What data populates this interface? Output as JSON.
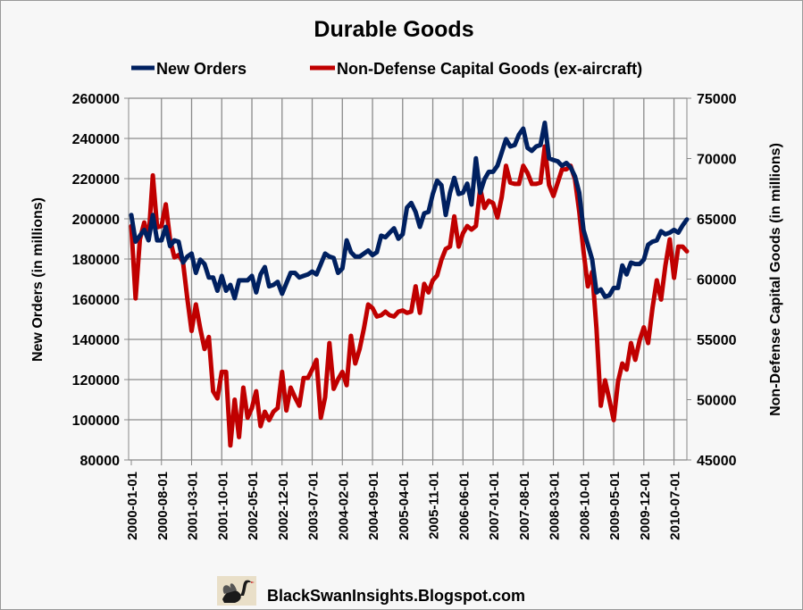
{
  "chart_data": {
    "type": "line",
    "title": "Durable Goods",
    "ylabel": "New Orders (in millions)",
    "y2label": "Non-Defense Capital Goods  (in millions)",
    "ylim": [
      80000,
      260000
    ],
    "y2lim": [
      45000,
      75000
    ],
    "yticks": [
      "260000",
      "240000",
      "220000",
      "200000",
      "180000",
      "160000",
      "140000",
      "120000",
      "100000",
      "80000"
    ],
    "y2ticks": [
      "75000",
      "70000",
      "65000",
      "60000",
      "55000",
      "50000",
      "45000"
    ],
    "x_start": "2000-01-01",
    "x_end": "2010-10-01",
    "x_frequency": "monthly",
    "xticks": [
      "2000-01-01",
      "2000-08-01",
      "2001-03-01",
      "2001-10-01",
      "2002-05-01",
      "2002-12-01",
      "2003-07-01",
      "2004-02-01",
      "2004-09-01",
      "2005-04-01",
      "2005-11-01",
      "2006-06-01",
      "2007-01-01",
      "2007-08-01",
      "2008-03-01",
      "2008-10-01",
      "2009-05-01",
      "2009-12-01",
      "2010-07-01"
    ],
    "grid": true,
    "legend_position": "top",
    "series": [
      {
        "name": "New Orders",
        "axis": "left",
        "color": "#002060",
        "values": [
          201900,
          188600,
          191600,
          194500,
          189300,
          201900,
          189300,
          189300,
          196000,
          186400,
          189300,
          188600,
          178200,
          181200,
          182700,
          173100,
          179700,
          177500,
          170800,
          170800,
          164200,
          171600,
          164200,
          167100,
          160500,
          169400,
          169400,
          169400,
          171600,
          163400,
          172300,
          176000,
          166400,
          167100,
          168600,
          162700,
          167900,
          173100,
          173100,
          170800,
          171600,
          172300,
          173800,
          172300,
          177500,
          182700,
          181200,
          180500,
          173100,
          175300,
          189300,
          183400,
          181200,
          181200,
          182700,
          184200,
          181900,
          183400,
          191600,
          190800,
          193100,
          195300,
          190100,
          192300,
          205600,
          207900,
          203400,
          196000,
          202700,
          203400,
          212300,
          219000,
          216700,
          201900,
          213000,
          220400,
          212300,
          213000,
          217500,
          207100,
          230100,
          213000,
          219700,
          223400,
          223400,
          226400,
          233000,
          239700,
          236000,
          236700,
          241900,
          244900,
          235300,
          233800,
          236000,
          236700,
          247800,
          230100,
          229300,
          228600,
          226400,
          227800,
          225600,
          221200,
          213000,
          194500,
          187100,
          179700,
          163400,
          164900,
          161200,
          161900,
          165600,
          165600,
          176800,
          172300,
          178200,
          177500,
          177500,
          179700,
          187100,
          188600,
          189300,
          193800,
          192300,
          193100,
          194500,
          193100,
          196700,
          199700
        ]
      },
      {
        "name": "Non-Defense Capital Goods (ex-aircraft)",
        "axis": "right",
        "color": "#c00000",
        "values": [
          64400,
          58400,
          63300,
          64700,
          63300,
          68600,
          64300,
          64400,
          66200,
          63300,
          61800,
          62000,
          61400,
          58400,
          55700,
          57900,
          55900,
          54200,
          55200,
          50700,
          50100,
          52300,
          52300,
          46200,
          50000,
          46900,
          51000,
          48500,
          49300,
          50700,
          47800,
          49000,
          48300,
          49000,
          49300,
          52300,
          49100,
          51000,
          50200,
          49500,
          51800,
          51800,
          52500,
          53300,
          48500,
          50200,
          54700,
          50900,
          51700,
          52300,
          51200,
          55300,
          53000,
          54200,
          55900,
          57900,
          57600,
          56900,
          57000,
          57300,
          57000,
          56900,
          57300,
          57400,
          57200,
          57300,
          59400,
          57200,
          59600,
          58900,
          59900,
          60300,
          61600,
          62500,
          62700,
          65200,
          62700,
          63800,
          64400,
          64100,
          64400,
          67500,
          65900,
          66500,
          66300,
          65100,
          66800,
          69400,
          68000,
          67900,
          67900,
          69400,
          68800,
          67900,
          67900,
          68000,
          71000,
          67800,
          66900,
          68000,
          69100,
          69100,
          69400,
          68300,
          65600,
          62300,
          59400,
          60600,
          55900,
          49500,
          51600,
          50000,
          48300,
          51500,
          53000,
          52500,
          54700,
          53300,
          54900,
          56000,
          54700,
          57600,
          59900,
          58300,
          61100,
          63300,
          60100,
          62700,
          62700,
          62300
        ]
      }
    ]
  },
  "footer": {
    "site": "BlackSwanInsights.Blogspot.com",
    "logo": "black-swan-logo"
  }
}
